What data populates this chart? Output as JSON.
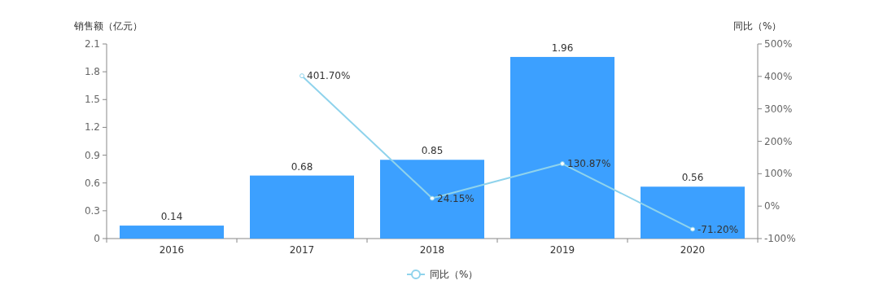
{
  "chart_data": {
    "type": "bar",
    "ylabel": "销售额（亿元）",
    "y2label": "同比（%）",
    "categories": [
      "2016",
      "2017",
      "2018",
      "2019",
      "2020"
    ],
    "series": [
      {
        "color": "#3ca0ff",
        "values": [
          0.14,
          0.68,
          0.85,
          1.96,
          0.56
        ],
        "value_labels": [
          "0.14",
          "0.68",
          "0.85",
          "1.96",
          "0.56"
        ]
      },
      {
        "type": "line",
        "name": "同比（%）",
        "axis": "y2",
        "color": "#8fd3ec",
        "marker": "circle",
        "values": [
          null,
          401.7,
          24.15,
          130.87,
          -71.2
        ],
        "value_labels": [
          null,
          "401.70%",
          "24.15%",
          "130.87%",
          "-71.20%"
        ]
      }
    ],
    "ylim": [
      0,
      2.1
    ],
    "yticks": [
      0,
      0.3,
      0.6,
      0.9,
      1.2,
      1.5,
      1.8,
      2.1
    ],
    "y2lim": [
      -100,
      500
    ],
    "y2ticks": [
      {
        "value": -100,
        "label": "-100%"
      },
      {
        "value": 0,
        "label": "0%"
      },
      {
        "value": 100,
        "label": "100%"
      },
      {
        "value": 200,
        "label": "200%"
      },
      {
        "value": 300,
        "label": "300%"
      },
      {
        "value": 400,
        "label": "400%"
      },
      {
        "value": 500,
        "label": "500%"
      }
    ],
    "legend": "bottom",
    "grid": false
  }
}
